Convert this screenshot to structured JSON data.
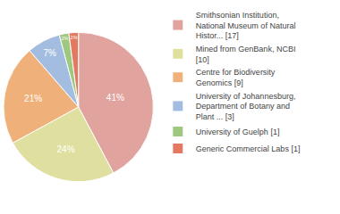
{
  "chart_data": {
    "type": "pie",
    "categories": [
      "Smithsonian Institution, National Museum of Natural Histor... [17]",
      "Mined from GenBank, NCBI [10]",
      "Centre for Biodiversity Genomics [9]",
      "University of Johannesburg, Department of Botany and Plant ... [3]",
      "University of Guelph [1]",
      "Generic Commercial Labs [1]"
    ],
    "values": [
      41,
      24,
      21,
      7,
      2,
      2
    ],
    "value_labels": [
      "41%",
      "24%",
      "21%",
      "7%",
      "2%",
      "2%"
    ],
    "colors": [
      "#e0a39e",
      "#dfe0a0",
      "#f0b07a",
      "#a3bde0",
      "#9ec77f",
      "#e27960"
    ],
    "data_labels": true,
    "legend": "right"
  }
}
